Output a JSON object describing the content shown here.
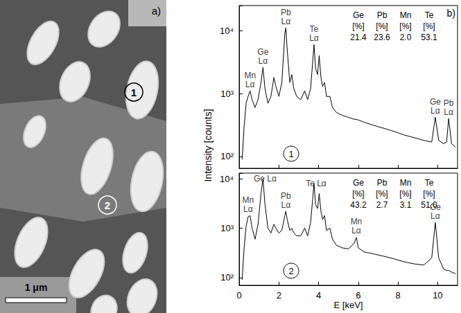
{
  "image_panel": {
    "panel_label": "a)",
    "markers": [
      "1",
      "2"
    ],
    "scale_bar": "1 μm"
  },
  "panel_label": "b)",
  "xlabel": "E [keV]",
  "ylabel": "Intensity [counts]",
  "chart_data": [
    {
      "type": "line",
      "color": "#000000",
      "log": "y",
      "grid": false,
      "tick_labels": "y",
      "marker_label": "1",
      "xlim": [
        0,
        11
      ],
      "xticks": [
        0,
        2,
        4,
        6,
        8,
        10
      ],
      "ylim": [
        65,
        25000
      ],
      "yticks": [
        {
          "value": 100,
          "label": "10²"
        },
        {
          "value": 1000,
          "label": "10³"
        },
        {
          "value": 10000,
          "label": "10⁴"
        }
      ],
      "x": [
        0.15,
        0.25,
        0.35,
        0.45,
        0.55,
        0.65,
        0.8,
        0.95,
        1.1,
        1.2,
        1.3,
        1.45,
        1.6,
        1.75,
        1.85,
        2.0,
        2.15,
        2.3,
        2.35,
        2.42,
        2.55,
        2.65,
        2.75,
        2.9,
        3.1,
        3.3,
        3.45,
        3.6,
        3.77,
        3.85,
        3.95,
        4.03,
        4.12,
        4.2,
        4.3,
        4.4,
        4.57,
        4.7,
        4.9,
        5.2,
        5.5,
        5.8,
        5.9,
        6.0,
        6.3,
        6.8,
        7.3,
        7.8,
        8.3,
        8.8,
        9.3,
        9.7,
        9.88,
        10.05,
        10.3,
        10.45,
        10.55,
        10.7,
        10.9
      ],
      "values": [
        90,
        300,
        700,
        900,
        1100,
        800,
        600,
        800,
        1500,
        2600,
        1200,
        700,
        900,
        1800,
        1300,
        900,
        1500,
        9000,
        11000,
        5000,
        1500,
        2000,
        1200,
        900,
        800,
        1100,
        800,
        1200,
        6000,
        2500,
        2000,
        4000,
        1800,
        1300,
        1500,
        900,
        900,
        600,
        500,
        450,
        420,
        390,
        390,
        380,
        350,
        310,
        280,
        250,
        220,
        200,
        180,
        170,
        420,
        180,
        160,
        170,
        400,
        160,
        140
      ],
      "annotations": [
        {
          "text": "Mn Lα",
          "x": 0.55,
          "y": 1100
        },
        {
          "text": "Ge Lα",
          "x": 1.2,
          "y": 2600
        },
        {
          "text": "Pb Lα",
          "x": 2.35,
          "y": 11000
        },
        {
          "text": "Te Lα",
          "x": 3.77,
          "y": 6000
        },
        {
          "text": "Ge Lα",
          "x": 9.88,
          "y": 420
        },
        {
          "text": "Pb Lα",
          "x": 10.55,
          "y": 400
        }
      ],
      "composition": {
        "elements": [
          "Ge",
          "Pb",
          "Mn",
          "Te"
        ],
        "unit": "[%]",
        "values": [
          21.4,
          23.6,
          2.0,
          53.1
        ],
        "value_labels": [
          "21.4",
          "23.6",
          "2.0",
          "53.1"
        ]
      }
    },
    {
      "type": "line",
      "color": "#000000",
      "log": "y",
      "grid": false,
      "marker_label": "2",
      "xlim": [
        0,
        11
      ],
      "xticks": [
        0,
        2,
        4,
        6,
        8,
        10
      ],
      "ylim": [
        70,
        13000
      ],
      "yticks": [
        {
          "value": 100,
          "label": "10²"
        },
        {
          "value": 1000,
          "label": "10³"
        },
        {
          "value": 10000,
          "label": "10⁴"
        }
      ],
      "x": [
        0.15,
        0.25,
        0.35,
        0.45,
        0.55,
        0.65,
        0.8,
        0.95,
        1.1,
        1.2,
        1.3,
        1.45,
        1.6,
        1.75,
        1.85,
        2.0,
        2.15,
        2.3,
        2.35,
        2.42,
        2.55,
        2.65,
        2.75,
        2.9,
        3.1,
        3.3,
        3.45,
        3.6,
        3.77,
        3.85,
        3.95,
        4.03,
        4.12,
        4.2,
        4.3,
        4.4,
        4.57,
        4.7,
        4.9,
        5.2,
        5.5,
        5.8,
        5.9,
        6.0,
        6.3,
        6.8,
        7.3,
        7.8,
        8.3,
        8.8,
        9.3,
        9.7,
        9.88,
        10.05,
        10.3,
        10.45,
        10.55,
        10.7,
        10.9
      ],
      "values": [
        90,
        400,
        1100,
        1700,
        1800,
        1000,
        600,
        1200,
        5000,
        10000,
        3000,
        1000,
        800,
        1200,
        1000,
        800,
        900,
        1800,
        2200,
        1500,
        900,
        1000,
        800,
        700,
        700,
        1000,
        700,
        1300,
        8000,
        3000,
        2500,
        5000,
        2200,
        1500,
        1800,
        900,
        1000,
        600,
        450,
        400,
        380,
        500,
        650,
        400,
        330,
        300,
        270,
        240,
        210,
        190,
        180,
        250,
        1300,
        250,
        150,
        140,
        140,
        130,
        120
      ],
      "annotations": [
        {
          "text": "Mn Lα",
          "x": 0.45,
          "y": 1800
        },
        {
          "text": "Ge Lα",
          "x": 1.2,
          "y": 10000
        },
        {
          "text": "Pb Lα",
          "x": 2.35,
          "y": 2200
        },
        {
          "text": "Te Lα",
          "x": 3.77,
          "y": 8000
        },
        {
          "text": "Mn Lα",
          "x": 5.9,
          "y": 650
        },
        {
          "text": "Ge Lα",
          "x": 9.88,
          "y": 1300
        }
      ],
      "composition": {
        "elements": [
          "Ge",
          "Pb",
          "Mn",
          "Te"
        ],
        "unit": "[%]",
        "values": [
          43.2,
          2.7,
          3.1,
          51.0
        ],
        "value_labels": [
          "43.2",
          "2.7",
          "3.1",
          "51.0"
        ]
      }
    }
  ]
}
